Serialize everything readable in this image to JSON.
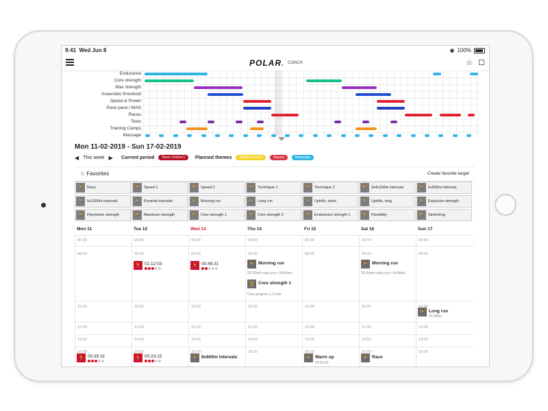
{
  "status": {
    "time": "9:41",
    "date": "Wed Jun 8",
    "wifi": "◉",
    "battery": "100%"
  },
  "header": {
    "logo": "POLAR",
    "logo_dot": ".",
    "subtitle": "COACH",
    "star": "☆",
    "chat": "☐"
  },
  "gantt": {
    "rows": [
      {
        "label": "Endurance"
      },
      {
        "label": "Core strength"
      },
      {
        "label": "Max strength"
      },
      {
        "label": "Anaerobic threshold"
      },
      {
        "label": "Speed & Power"
      },
      {
        "label": "Race pace / MAS"
      },
      {
        "label": "Races"
      },
      {
        "label": "Tests"
      },
      {
        "label": "Training Camps"
      },
      {
        "label": "Massage"
      }
    ]
  },
  "week": {
    "title": "Mon 11-02-2019 - Sun 17-02-2019",
    "prev": "◀",
    "this_week": "This week",
    "next": "▶",
    "current_period_label": "Current period",
    "current_period_value": "Race (indoor)",
    "planned_themes_label": "Planned themes",
    "themes": [
      {
        "label": "Medium week",
        "color": "#f5d327"
      },
      {
        "label": "Races",
        "color": "#e03544"
      },
      {
        "label": "Massage",
        "color": "#2fb3e6"
      }
    ]
  },
  "favorites": {
    "title": "Favorites",
    "create": "Create favorite target",
    "items": [
      "Race",
      "Speed 1",
      "Speed 2",
      "Technique 1",
      "Technique 2",
      "3x4x200m intervals",
      "6x600m intervals",
      "6x1000m intervals",
      "Pyramid intervals",
      "Morning run",
      "Long run",
      "Uphills, short",
      "Uphills, long",
      "Explosive strength",
      "Plyometric strength",
      "Maximum strength",
      "Core strength 1",
      "Core strength 2",
      "Endurance strength 1",
      "Flexibility",
      "Stretching"
    ]
  },
  "calendar": {
    "days": [
      "Mon 11",
      "Tue 12",
      "Wed 13",
      "Thu 14",
      "Fri 15",
      "Sat 16",
      "Sun 17"
    ],
    "times": [
      "00:00",
      "08:00",
      "10:00",
      "12:00",
      "14:00",
      "16:00"
    ],
    "events": {
      "tue_am": {
        "duration": "01:12:03"
      },
      "wed_am": {
        "duration": "00:49:31"
      },
      "thu_run": {
        "title": "Morning run",
        "sub": "20-30min easy jog + 6x5tides"
      },
      "thu_core": {
        "title": "Core strength 1",
        "sub": "Core program 1.2 sets"
      },
      "sat_run": {
        "title": "Morning run",
        "sub": "20-30min easy jog + 6x5tides"
      },
      "sun_long": {
        "title": "Long run",
        "sub": "20.00km"
      },
      "mon_pm": {
        "duration": "00:35:31"
      },
      "tue_pm": {
        "duration": "00:23:15"
      },
      "wed_pm": {
        "title": "8x600m intervals"
      },
      "fri_pm": {
        "title": "Warm up",
        "sub": "00:30:00"
      },
      "sat_pm": {
        "title": "Race"
      }
    }
  }
}
